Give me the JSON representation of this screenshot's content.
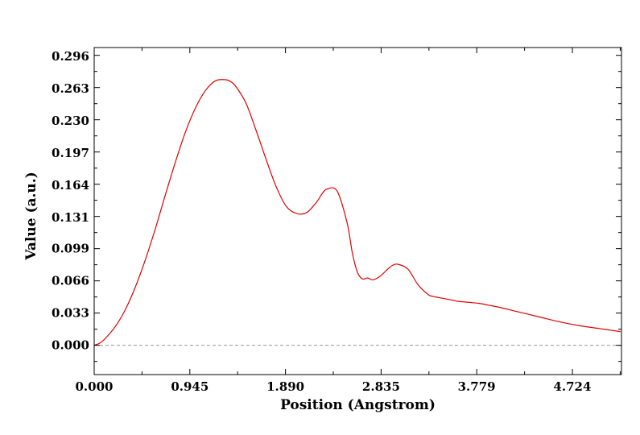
{
  "chart_data": {
    "type": "line",
    "xlabel": "Position (Angstrom)",
    "ylabel": "Value (a.u.)",
    "xlim": [
      0.0,
      5.21
    ],
    "ylim": [
      -0.03,
      0.305
    ],
    "x_ticks": [
      "0.000",
      "0.945",
      "1.890",
      "2.835",
      "3.779",
      "4.724"
    ],
    "y_ticks": [
      "0.000",
      "0.033",
      "0.066",
      "0.099",
      "0.131",
      "0.164",
      "0.197",
      "0.230",
      "0.263",
      "0.296"
    ],
    "zero_line": true,
    "grid": false,
    "colors": {
      "series": "#e00000",
      "zero_line": "#999999",
      "axes": "#000000"
    },
    "series": [
      {
        "x": [
          0.0,
          0.05,
          0.1,
          0.2,
          0.3,
          0.4,
          0.5,
          0.6,
          0.7,
          0.8,
          0.9,
          1.0,
          1.1,
          1.2,
          1.3,
          1.35,
          1.4,
          1.5,
          1.6,
          1.7,
          1.8,
          1.9,
          2.0,
          2.1,
          2.2,
          2.25,
          2.3,
          2.4,
          2.5,
          2.55,
          2.6,
          2.65,
          2.7,
          2.75,
          2.8,
          2.85,
          2.9,
          2.95,
          3.0,
          3.1,
          3.2,
          3.3,
          3.35,
          3.4,
          3.45,
          3.5,
          3.55,
          3.6,
          3.7,
          3.8,
          3.9,
          4.0,
          4.2,
          4.4,
          4.6,
          4.8,
          5.0,
          5.2
        ],
        "y": [
          0.0,
          0.002,
          0.006,
          0.018,
          0.035,
          0.058,
          0.086,
          0.118,
          0.153,
          0.187,
          0.218,
          0.243,
          0.261,
          0.271,
          0.272,
          0.27,
          0.265,
          0.248,
          0.22,
          0.19,
          0.162,
          0.142,
          0.135,
          0.136,
          0.147,
          0.155,
          0.16,
          0.158,
          0.125,
          0.095,
          0.075,
          0.068,
          0.069,
          0.067,
          0.069,
          0.073,
          0.078,
          0.082,
          0.083,
          0.078,
          0.062,
          0.052,
          0.05,
          0.049,
          0.048,
          0.047,
          0.046,
          0.045,
          0.044,
          0.043,
          0.041,
          0.039,
          0.034,
          0.029,
          0.024,
          0.02,
          0.017,
          0.014
        ]
      }
    ]
  }
}
